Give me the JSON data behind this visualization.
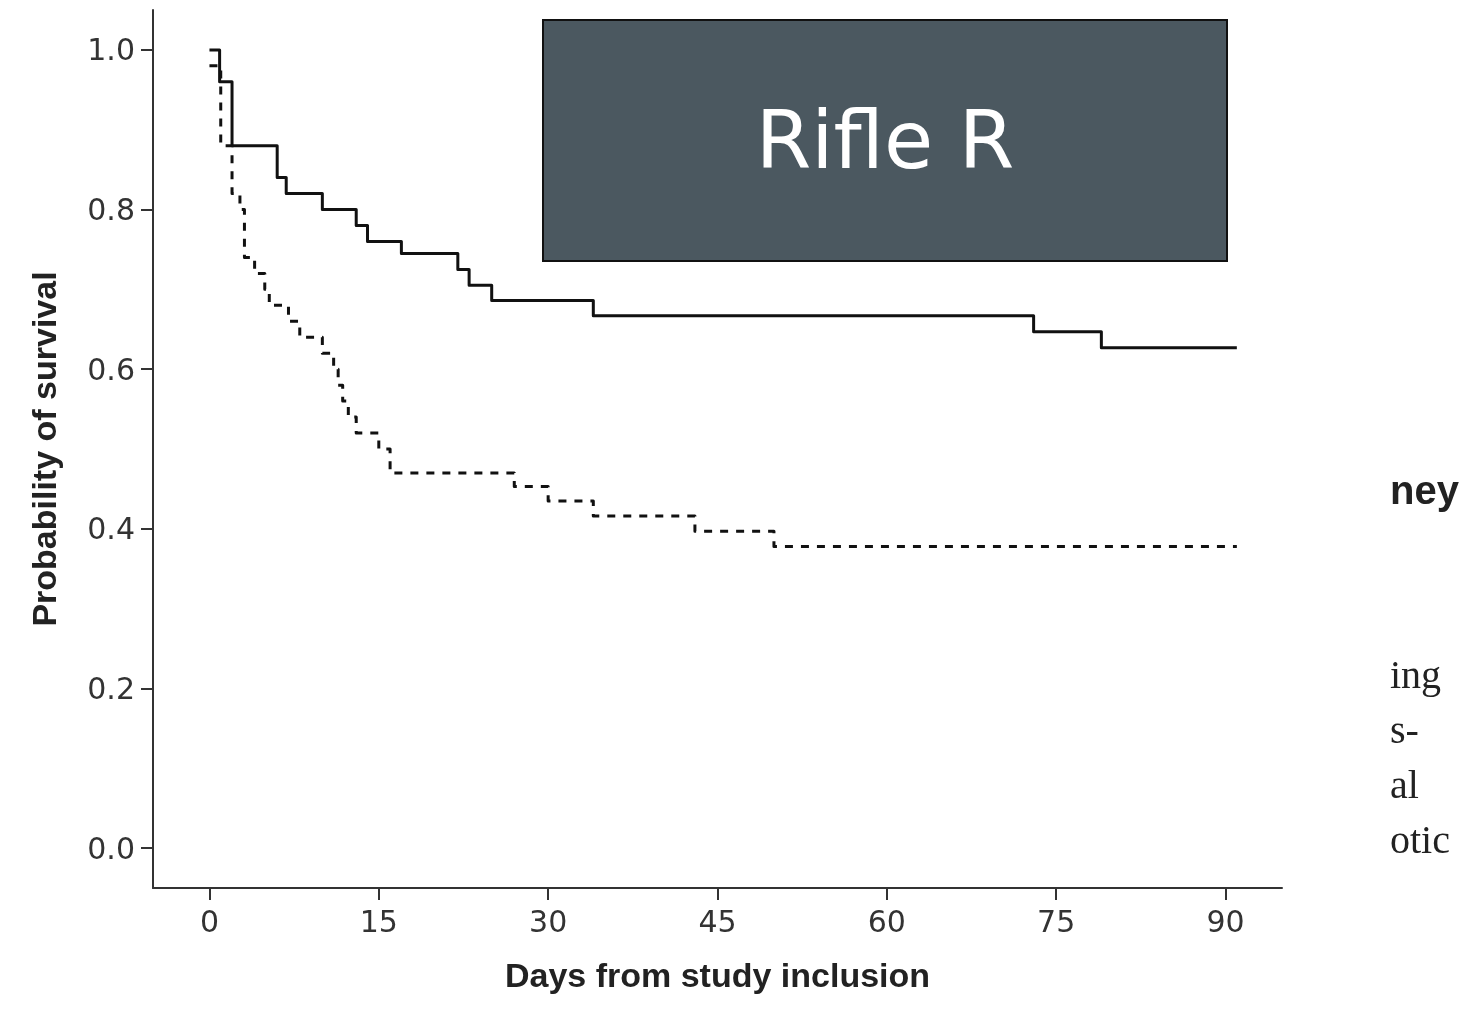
{
  "chart_data": {
    "type": "step",
    "xlabel": "Days from study inclusion",
    "ylabel": "Probability of survival",
    "xlim": [
      -5,
      95
    ],
    "xticks": [
      0,
      15,
      30,
      45,
      60,
      75,
      90
    ],
    "ylim": [
      -0.05,
      1.05
    ],
    "yticks": [
      {
        "value": 0,
        "label": "0.0"
      },
      {
        "value": 0.2,
        "label": "0.2"
      },
      {
        "value": 0.4,
        "label": "0.4"
      },
      {
        "value": 0.6,
        "label": "0.6"
      },
      {
        "value": 0.8,
        "label": "0.8"
      },
      {
        "value": 1,
        "label": "1.0"
      }
    ],
    "grid": false,
    "marker": "none",
    "series": [
      {
        "color": "#111111",
        "line_style": "solid",
        "x": [
          0,
          0.9,
          2,
          6,
          6.8,
          10,
          13,
          14,
          17,
          22,
          23,
          25,
          34,
          73,
          79,
          91
        ],
        "values": [
          1.0,
          0.96,
          0.88,
          0.84,
          0.82,
          0.8,
          0.78,
          0.76,
          0.745,
          0.725,
          0.705,
          0.686,
          0.667,
          0.647,
          0.627,
          0.627
        ]
      },
      {
        "color": "#111111",
        "line_style": "dashed",
        "x": [
          0,
          1,
          2,
          2.7,
          3.1,
          4,
          4.9,
          5.3,
          7,
          8,
          10,
          11,
          11.4,
          11.8,
          12.3,
          13,
          15,
          16,
          27,
          30,
          34,
          43,
          50,
          91
        ],
        "values": [
          0.98,
          0.88,
          0.82,
          0.8,
          0.74,
          0.72,
          0.7,
          0.68,
          0.66,
          0.64,
          0.62,
          0.6,
          0.58,
          0.56,
          0.54,
          0.52,
          0.5,
          0.47,
          0.453,
          0.435,
          0.416,
          0.397,
          0.378,
          0.378
        ]
      }
    ],
    "annotations": [
      "Rifle R",
      "ney",
      "ing",
      "s-",
      "al",
      "otic"
    ]
  }
}
